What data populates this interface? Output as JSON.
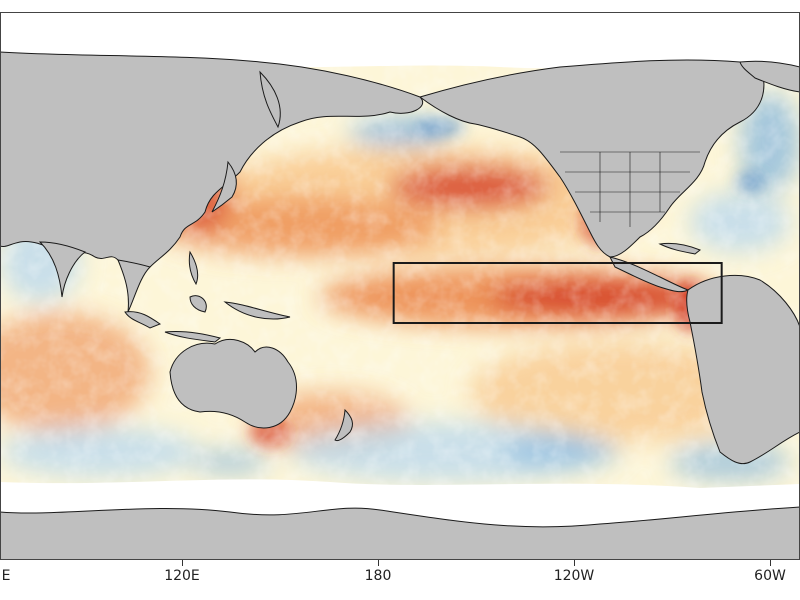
{
  "map": {
    "x_ticks": [
      {
        "label": "E",
        "lon": 60
      },
      {
        "label": "120E",
        "lon": 120
      },
      {
        "label": "180",
        "lon": 180
      },
      {
        "label": "120W",
        "lon": 240
      },
      {
        "label": "60W",
        "lon": 300
      }
    ],
    "highlight_box": {
      "lon_min": 190,
      "lon_max": 280,
      "lat_min": -5,
      "lat_max": 5
    },
    "colors": {
      "land": "#bfbfbf",
      "ice": "#ffffff",
      "coast": "#1a1a1a",
      "ocean_neutral": "#fdf6d8",
      "warm_light": "#f8c98f",
      "warm": "#ec8a4e",
      "warm_strong": "#d43c26",
      "cool_light": "#bcd9ee",
      "cool": "#7fb3de",
      "cool_strong": "#3d7fc4",
      "box": "#1a1a1a"
    }
  }
}
